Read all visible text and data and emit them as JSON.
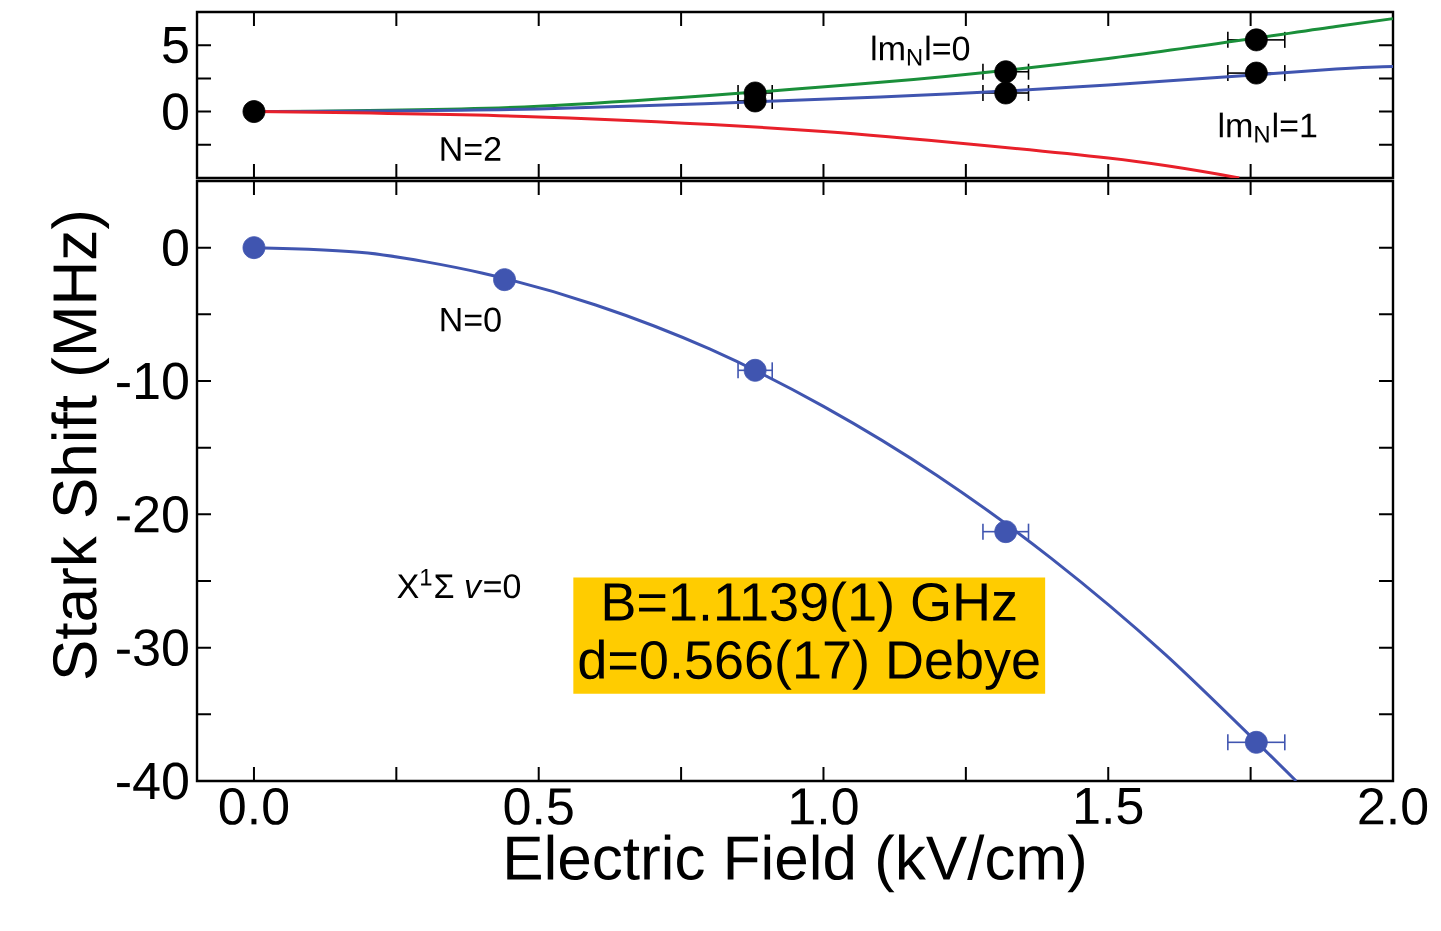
{
  "chart_data": [
    {
      "type": "line",
      "xlim": [
        -0.1,
        2.0
      ],
      "ylim": [
        -5,
        7.5
      ],
      "xticks": [
        {
          "value": 0,
          "label": null
        },
        {
          "value": 0.25,
          "label": null
        },
        {
          "value": 0.5,
          "label": null
        },
        {
          "value": 0.75,
          "label": null
        },
        {
          "value": 1.0,
          "label": null
        },
        {
          "value": 1.25,
          "label": null
        },
        {
          "value": 1.5,
          "label": null
        },
        {
          "value": 1.75,
          "label": null
        },
        {
          "value": 2.0,
          "label": null
        }
      ],
      "yticks": [
        {
          "value": -2.5,
          "label": null
        },
        0,
        {
          "value": 2.5,
          "label": null
        },
        5
      ],
      "tick_labels": "y",
      "series": [
        {
          "type": "scatter",
          "marker": "circle",
          "color": "#000000",
          "x": [
            0,
            0.88,
            0.88,
            1.32,
            1.32,
            1.76,
            1.76
          ],
          "values": [
            0,
            1.4,
            0.8,
            3.0,
            1.4,
            5.4,
            2.9
          ],
          "xerrors": [
            null,
            0.03,
            0.03,
            0.04,
            0.04,
            0.05,
            0.05
          ]
        },
        {
          "color": "#1a8f3a",
          "x": [
            0,
            0.5,
            1.1,
            1.5,
            1.9,
            2.0
          ],
          "values": [
            0,
            0.4,
            2.2,
            4.0,
            6.4,
            7.0
          ]
        },
        {
          "color": "#4055b0",
          "x": [
            0,
            0.5,
            1.1,
            1.5,
            1.9,
            2.0
          ],
          "values": [
            0,
            0.2,
            1.1,
            2.0,
            3.2,
            3.4
          ]
        },
        {
          "color": "#e8202a",
          "x": [
            0,
            0.5,
            1.0,
            1.5,
            1.73
          ],
          "values": [
            0,
            -0.4,
            -1.5,
            -3.5,
            -5
          ]
        }
      ],
      "annotations": [
        "lm$_{N}$l=0",
        "lm$_{N}$l=1",
        "N=2"
      ]
    },
    {
      "type": "line",
      "xlim": [
        -0.1,
        2.0
      ],
      "ylim": [
        -40,
        5
      ],
      "xticks": [
        {
          "value": 0,
          "label": "0.0"
        },
        {
          "value": 0.25,
          "label": null
        },
        0.5,
        {
          "value": 0.75,
          "label": null
        },
        {
          "value": 1.0,
          "label": "1.0"
        },
        {
          "value": 1.25,
          "label": null
        },
        1.5,
        {
          "value": 1.75,
          "label": null
        },
        {
          "value": 2.0,
          "label": "2.0"
        }
      ],
      "yticks": [
        -40,
        {
          "value": -35,
          "label": null
        },
        -30,
        {
          "value": -25,
          "label": null
        },
        -20,
        {
          "value": -15,
          "label": null
        },
        -10,
        {
          "value": -5,
          "label": null
        },
        0
      ],
      "xlabel": "Electric Field (kV/cm)",
      "ylabel": "Stark Shift (MHz)",
      "series": [
        {
          "color": "#4055b0",
          "x": [
            0,
            0.2,
            0.4,
            0.6,
            0.8,
            1.0,
            1.2,
            1.4,
            1.6,
            1.83
          ],
          "values": [
            0,
            -0.4,
            -1.9,
            -4.3,
            -7.6,
            -11.9,
            -17.1,
            -23.3,
            -30.5,
            -40
          ]
        },
        {
          "type": "scatter",
          "marker": "circle",
          "color": "#4055b0",
          "x": [
            0,
            0.44,
            0.88,
            1.32,
            1.76
          ],
          "values": [
            0,
            -2.4,
            -9.2,
            -21.3,
            -37.1
          ],
          "xerrors": [
            null,
            null,
            0.03,
            0.04,
            0.05
          ]
        }
      ],
      "annotations": [
        "N=0",
        "X$^{1}$Σ *v*=0",
        "B=1.1139(1) GHz",
        "d=0.566(17) Debye"
      ]
    }
  ]
}
